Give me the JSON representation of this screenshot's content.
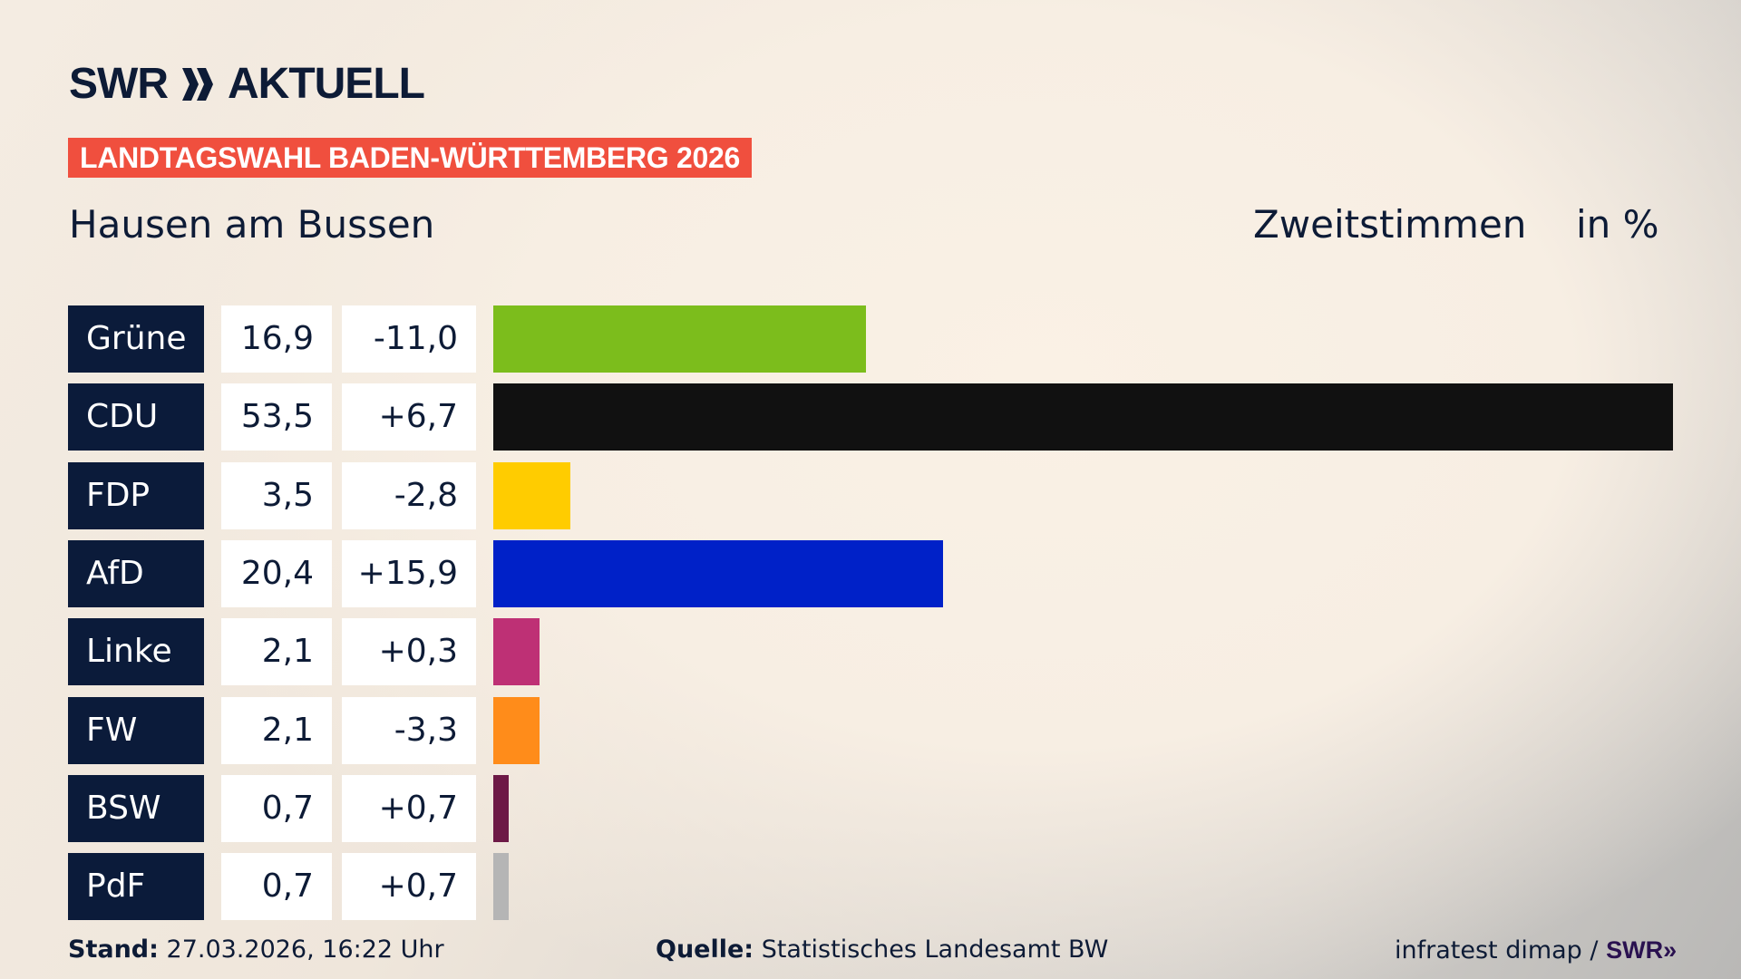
{
  "header": {
    "logo_text": "SWR",
    "logo_suffix": "AKTUELL",
    "banner": "LANDTAGSWAHL BADEN-WÜRTTEMBERG 2026",
    "location": "Hausen am Bussen",
    "measure": "Zweitstimmen",
    "unit": "in %"
  },
  "chart_data": {
    "type": "bar",
    "orientation": "horizontal",
    "title": "Hausen am Bussen",
    "xlabel": "Zweitstimmen in %",
    "xlim": [
      0,
      53.5
    ],
    "categories": [
      "Grüne",
      "CDU",
      "FDP",
      "AfD",
      "Linke",
      "FW",
      "BSW",
      "PdF"
    ],
    "values": [
      16.9,
      53.5,
      3.5,
      20.4,
      2.1,
      2.1,
      0.7,
      0.7
    ],
    "value_labels": [
      "16,9",
      "53,5",
      "3,5",
      "20,4",
      "2,1",
      "2,1",
      "0,7",
      "0,7"
    ],
    "diff_labels": [
      "-11,0",
      "+6,7",
      "-2,8",
      "+15,9",
      "+0,3",
      "-3,3",
      "+0,7",
      "+0,7"
    ],
    "colors": [
      "#7cbd1c",
      "#111111",
      "#ffcc00",
      "#0021c8",
      "#be3075",
      "#ff8c1a",
      "#6d1946",
      "#b5b5b5"
    ]
  },
  "footer": {
    "stand_label": "Stand:",
    "stand_value": "27.03.2026, 16:22 Uhr",
    "source_label": "Quelle:",
    "source_value": "Statistisches Landesamt BW",
    "credit": "infratest dimap /",
    "credit_logo": "SWR"
  },
  "colors": {
    "navy": "#0b1b3a",
    "banner": "#f04f3e"
  }
}
